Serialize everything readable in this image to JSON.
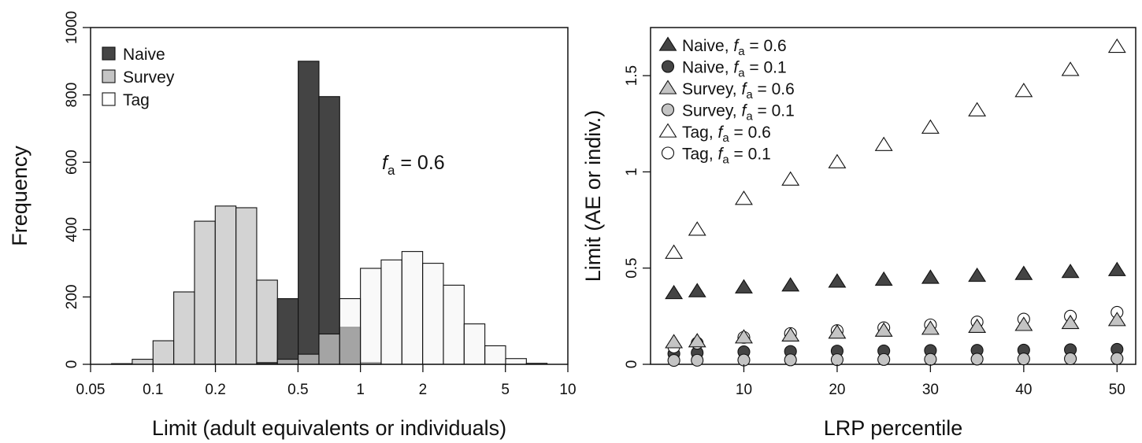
{
  "chart_data": [
    {
      "type": "bar",
      "xscale": "log",
      "xlabel": "Limit (adult equivalents or individuals)",
      "ylabel": "Frequency",
      "xlim": [
        0.05,
        10
      ],
      "ylim": [
        0,
        1000
      ],
      "xticks": [
        "0.05",
        "0.1",
        "0.2",
        "0.5",
        "1",
        "2",
        "5",
        "10"
      ],
      "xtick_values": [
        0.05,
        0.1,
        0.2,
        0.5,
        1,
        2,
        5,
        10
      ],
      "yticks": [
        "0",
        "200",
        "400",
        "600",
        "800",
        "1000"
      ],
      "ytick_values": [
        0,
        200,
        400,
        600,
        800,
        1000
      ],
      "bin_edges": [
        0.0631,
        0.0794,
        0.1,
        0.1259,
        0.1585,
        0.1995,
        0.2512,
        0.3162,
        0.3981,
        0.5012,
        0.631,
        0.7943,
        1.0,
        1.2589,
        1.5849,
        1.9953,
        2.5119,
        3.1623,
        3.9811,
        5.0119,
        6.3096,
        7.9433
      ],
      "annotation": {
        "italic": "f",
        "sub": "a",
        "rest": " = 0.6"
      },
      "legend": {
        "position": "top-left",
        "entries": [
          "Naive",
          "Survey",
          "Tag"
        ]
      },
      "series": [
        {
          "name": "Naive",
          "color": "#444444",
          "opacity": 1.0,
          "values": [
            0,
            0,
            0,
            0,
            0,
            0,
            0,
            5,
            195,
            900,
            795,
            110,
            5,
            0,
            0,
            0,
            0,
            0,
            0,
            0,
            0
          ]
        },
        {
          "name": "Survey",
          "color": "#c4c4c4",
          "opacity": 0.75,
          "values": [
            2,
            15,
            70,
            215,
            425,
            470,
            465,
            250,
            70,
            45,
            15,
            5,
            0,
            0,
            0,
            0,
            0,
            0,
            0,
            0,
            0
          ]
        },
        {
          "name": "Tag",
          "color": "#f4f4f4",
          "opacity": 0.55,
          "values": [
            0,
            0,
            0,
            0,
            0,
            0,
            0,
            0,
            15,
            30,
            90,
            195,
            285,
            310,
            335,
            300,
            235,
            120,
            55,
            17,
            3
          ]
        }
      ]
    },
    {
      "type": "scatter",
      "xlabel": "LRP percentile",
      "ylabel": "Limit (AE or indiv.)",
      "xlim": [
        0,
        52
      ],
      "ylim": [
        0,
        1.75
      ],
      "xticks": [
        "10",
        "20",
        "30",
        "40",
        "50"
      ],
      "xtick_values": [
        10,
        20,
        30,
        40,
        50
      ],
      "yticks": [
        "0",
        "0.5",
        "1",
        "1.5"
      ],
      "ytick_values": [
        0,
        0.5,
        1,
        1.5
      ],
      "legend": {
        "position": "top-left"
      },
      "x": [
        2.5,
        5,
        10,
        15,
        20,
        25,
        30,
        35,
        40,
        45,
        50
      ],
      "series": [
        {
          "name": "Naive",
          "fa": "0.6",
          "marker": "triangle",
          "fill": "#444444",
          "values": [
            0.37,
            0.38,
            0.4,
            0.41,
            0.43,
            0.44,
            0.45,
            0.46,
            0.47,
            0.48,
            0.49
          ]
        },
        {
          "name": "Naive",
          "fa": "0.1",
          "marker": "circle",
          "fill": "#444444",
          "values": [
            0.055,
            0.06,
            0.065,
            0.067,
            0.069,
            0.07,
            0.072,
            0.073,
            0.074,
            0.076,
            0.078
          ]
        },
        {
          "name": "Survey",
          "fa": "0.6",
          "marker": "triangle",
          "fill": "#c4c4c4",
          "values": [
            0.115,
            0.12,
            0.14,
            0.15,
            0.165,
            0.175,
            0.185,
            0.195,
            0.205,
            0.215,
            0.23
          ]
        },
        {
          "name": "Survey",
          "fa": "0.1",
          "marker": "circle",
          "fill": "#c4c4c4",
          "values": [
            0.02,
            0.021,
            0.022,
            0.023,
            0.024,
            0.025,
            0.026,
            0.027,
            0.028,
            0.029,
            0.03
          ]
        },
        {
          "name": "Tag",
          "fa": "0.6",
          "marker": "triangle",
          "fill": "#ffffff",
          "values": [
            0.58,
            0.7,
            0.86,
            0.96,
            1.05,
            1.14,
            1.23,
            1.32,
            1.42,
            1.53,
            1.65
          ]
        },
        {
          "name": "Tag",
          "fa": "0.1",
          "marker": "circle",
          "fill": "#ffffff",
          "values": [
            0.09,
            0.11,
            0.14,
            0.16,
            0.175,
            0.19,
            0.205,
            0.22,
            0.235,
            0.25,
            0.27
          ]
        }
      ]
    }
  ]
}
